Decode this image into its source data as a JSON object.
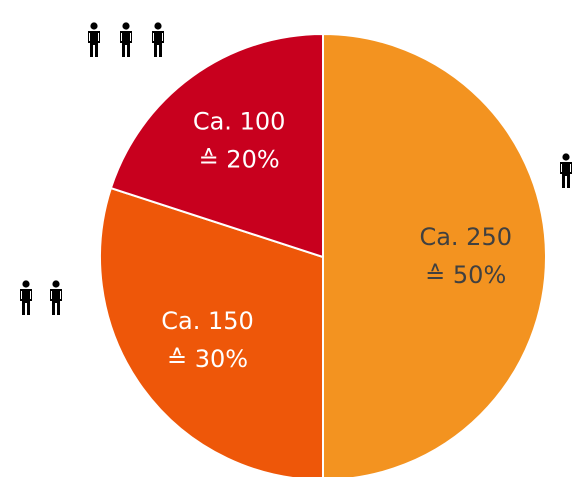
{
  "chart_data": {
    "type": "pie",
    "categories": [
      "Ca. 250",
      "Ca. 150",
      "Ca. 100"
    ],
    "values": [
      50,
      30,
      20
    ],
    "value_labels": [
      "≙ 50%",
      "≙ 30%",
      "≙ 20%"
    ],
    "colors": [
      "#f39320",
      "#ee5709",
      "#c8001e"
    ],
    "label_colors": [
      "#404040",
      "#ffffff",
      "#ffffff"
    ]
  }
}
